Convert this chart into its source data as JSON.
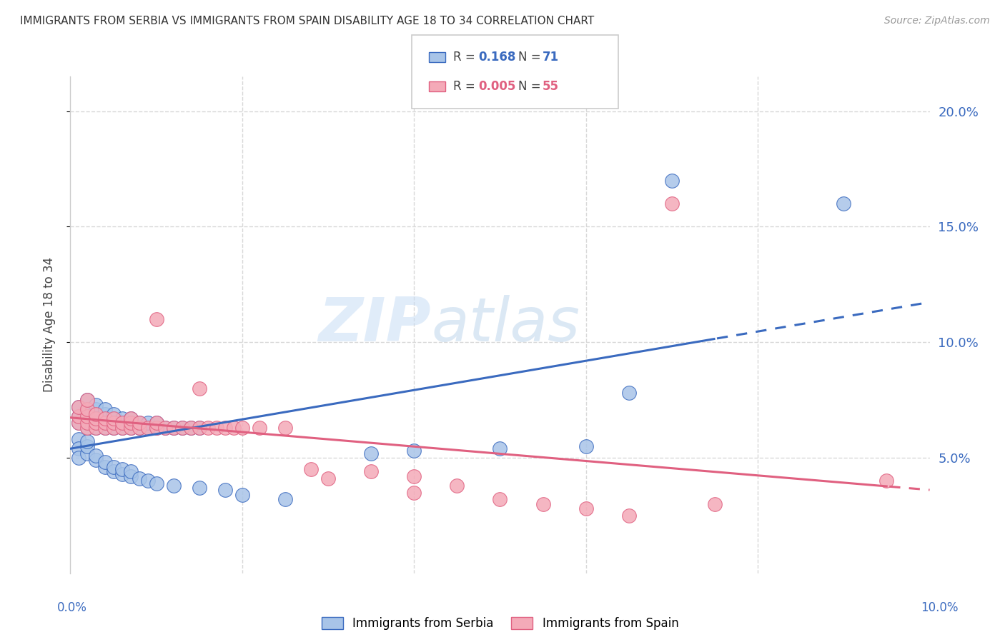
{
  "title": "IMMIGRANTS FROM SERBIA VS IMMIGRANTS FROM SPAIN DISABILITY AGE 18 TO 34 CORRELATION CHART",
  "source": "Source: ZipAtlas.com",
  "ylabel": "Disability Age 18 to 34",
  "watermark_left": "ZIP",
  "watermark_right": "atlas",
  "serbia_R": 0.168,
  "serbia_N": 71,
  "spain_R": 0.005,
  "spain_N": 55,
  "serbia_color": "#a8c4e8",
  "serbia_line_color": "#3a6abf",
  "spain_color": "#f4aab8",
  "spain_line_color": "#e06080",
  "serbia_x": [
    0.001,
    0.001,
    0.001,
    0.002,
    0.002,
    0.002,
    0.002,
    0.002,
    0.003,
    0.003,
    0.003,
    0.003,
    0.003,
    0.003,
    0.004,
    0.004,
    0.004,
    0.004,
    0.004,
    0.005,
    0.005,
    0.005,
    0.005,
    0.006,
    0.006,
    0.006,
    0.007,
    0.007,
    0.007,
    0.008,
    0.008,
    0.009,
    0.009,
    0.01,
    0.01,
    0.011,
    0.012,
    0.013,
    0.014,
    0.015,
    0.001,
    0.001,
    0.001,
    0.002,
    0.002,
    0.002,
    0.003,
    0.003,
    0.004,
    0.004,
    0.005,
    0.005,
    0.006,
    0.006,
    0.007,
    0.007,
    0.008,
    0.009,
    0.01,
    0.012,
    0.015,
    0.018,
    0.02,
    0.025,
    0.035,
    0.04,
    0.05,
    0.06,
    0.065,
    0.07,
    0.09
  ],
  "serbia_y": [
    0.065,
    0.068,
    0.072,
    0.063,
    0.065,
    0.068,
    0.071,
    0.075,
    0.063,
    0.065,
    0.067,
    0.069,
    0.071,
    0.073,
    0.063,
    0.065,
    0.067,
    0.069,
    0.071,
    0.063,
    0.065,
    0.067,
    0.069,
    0.063,
    0.065,
    0.067,
    0.063,
    0.065,
    0.067,
    0.063,
    0.065,
    0.063,
    0.065,
    0.063,
    0.065,
    0.063,
    0.063,
    0.063,
    0.063,
    0.063,
    0.058,
    0.054,
    0.05,
    0.052,
    0.055,
    0.057,
    0.049,
    0.051,
    0.046,
    0.048,
    0.044,
    0.046,
    0.043,
    0.045,
    0.042,
    0.044,
    0.041,
    0.04,
    0.039,
    0.038,
    0.037,
    0.036,
    0.034,
    0.032,
    0.052,
    0.053,
    0.054,
    0.055,
    0.078,
    0.17,
    0.16
  ],
  "spain_x": [
    0.001,
    0.001,
    0.001,
    0.002,
    0.002,
    0.002,
    0.002,
    0.002,
    0.003,
    0.003,
    0.003,
    0.003,
    0.004,
    0.004,
    0.004,
    0.005,
    0.005,
    0.005,
    0.006,
    0.006,
    0.007,
    0.007,
    0.007,
    0.008,
    0.008,
    0.009,
    0.01,
    0.01,
    0.01,
    0.011,
    0.012,
    0.013,
    0.014,
    0.015,
    0.015,
    0.016,
    0.017,
    0.018,
    0.019,
    0.02,
    0.022,
    0.025,
    0.028,
    0.03,
    0.035,
    0.04,
    0.04,
    0.045,
    0.05,
    0.055,
    0.06,
    0.065,
    0.07,
    0.075,
    0.095
  ],
  "spain_y": [
    0.065,
    0.068,
    0.072,
    0.063,
    0.065,
    0.068,
    0.071,
    0.075,
    0.063,
    0.065,
    0.067,
    0.069,
    0.063,
    0.065,
    0.067,
    0.063,
    0.065,
    0.067,
    0.063,
    0.065,
    0.063,
    0.065,
    0.067,
    0.063,
    0.065,
    0.063,
    0.063,
    0.065,
    0.11,
    0.063,
    0.063,
    0.063,
    0.063,
    0.063,
    0.08,
    0.063,
    0.063,
    0.063,
    0.063,
    0.063,
    0.063,
    0.063,
    0.045,
    0.041,
    0.044,
    0.042,
    0.035,
    0.038,
    0.032,
    0.03,
    0.028,
    0.025,
    0.16,
    0.03,
    0.04
  ],
  "xmin": 0.0,
  "xmax": 0.1,
  "ymin": 0.0,
  "ymax": 0.215,
  "yticks": [
    0.05,
    0.1,
    0.15,
    0.2
  ],
  "ytick_labels": [
    "5.0%",
    "10.0%",
    "15.0%",
    "20.0%"
  ],
  "grid_color": "#d8d8d8",
  "bg_color": "#ffffff"
}
